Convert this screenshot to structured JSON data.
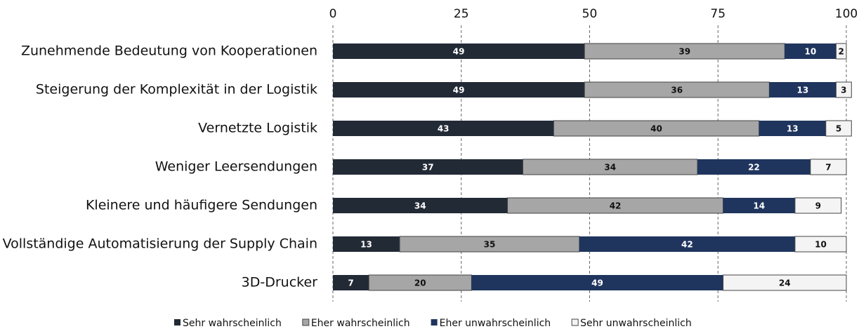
{
  "chart_data": {
    "type": "stacked-bar-horizontal",
    "categories": [
      "Zunehmende Bedeutung von Kooperationen",
      "Steigerung der Komplexität in der Logistik",
      "Vernetzte Logistik",
      "Weniger Leersendungen",
      "Kleinere und häufigere Sendungen",
      "Vollständige Automatisierung der Supply Chain",
      "3D-Drucker"
    ],
    "series": [
      {
        "name": "Sehr wahrscheinlich",
        "color": "#222a36",
        "values": [
          49,
          49,
          43,
          37,
          34,
          13,
          7
        ]
      },
      {
        "name": "Eher wahrscheinlich",
        "color": "#a6a6a6",
        "values": [
          39,
          36,
          40,
          34,
          42,
          35,
          20
        ]
      },
      {
        "name": "Eher unwahrscheinlich",
        "color": "#1f355e",
        "values": [
          10,
          13,
          13,
          22,
          14,
          42,
          49
        ]
      },
      {
        "name": "Sehr unwahrscheinlich",
        "color": "#f4f4f4",
        "values": [
          2,
          3,
          5,
          7,
          9,
          10,
          24
        ]
      }
    ],
    "xlim": [
      0,
      100
    ],
    "xticks": [
      0,
      25,
      50,
      75,
      100
    ],
    "grid": true,
    "legend": "bottom"
  }
}
